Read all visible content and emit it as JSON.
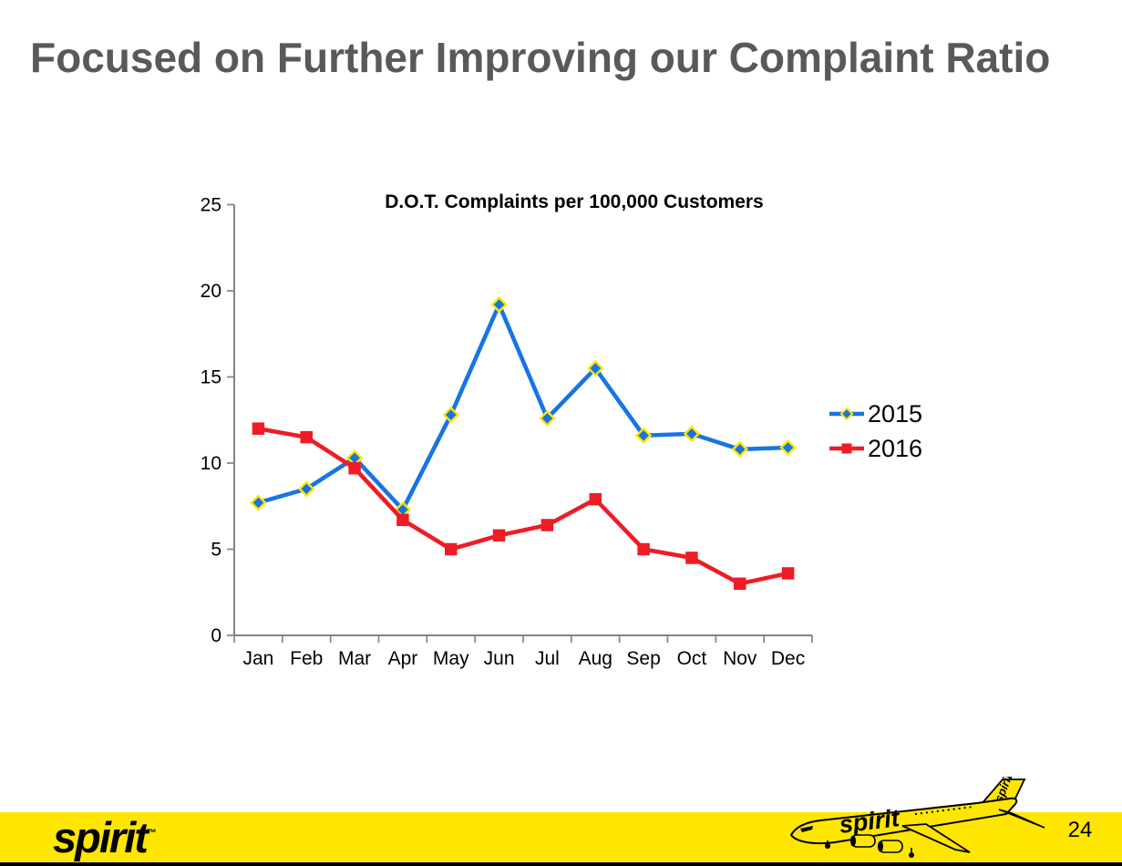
{
  "slide": {
    "title": "Focused on Further Improving our Complaint Ratio",
    "page_number": "24"
  },
  "chart_data": {
    "type": "line",
    "title": "D.O.T. Complaints per 100,000 Customers",
    "categories": [
      "Jan",
      "Feb",
      "Mar",
      "Apr",
      "May",
      "Jun",
      "Jul",
      "Aug",
      "Sep",
      "Oct",
      "Nov",
      "Dec"
    ],
    "series": [
      {
        "name": "2015",
        "color": "#1874E5",
        "marker": "diamond",
        "marker_stroke": "#FFE600",
        "values": [
          7.7,
          8.5,
          10.3,
          7.3,
          12.8,
          19.2,
          12.6,
          15.5,
          11.6,
          11.7,
          10.8,
          10.9
        ]
      },
      {
        "name": "2016",
        "color": "#EE1C25",
        "marker": "square",
        "marker_stroke": "#EE1C25",
        "values": [
          12.0,
          11.5,
          9.7,
          6.7,
          5.0,
          5.8,
          6.4,
          7.9,
          5.0,
          4.5,
          3.0,
          3.6
        ]
      }
    ],
    "ylim": [
      0,
      25
    ],
    "yticks": [
      0,
      5,
      10,
      15,
      20,
      25
    ],
    "grid": false,
    "legend_position": "right"
  },
  "footer": {
    "logo_text": "spirit",
    "logo_trademark": "™",
    "plane_fuselage_label": "spirit",
    "plane_tail_label": "spirit",
    "bar_color": "#FFE600"
  },
  "colors": {
    "title_gray": "#595959",
    "axis_gray": "#848484",
    "brand_yellow": "#FFE600",
    "series_2015_blue": "#1874E5",
    "series_2016_red": "#EE1C25"
  }
}
